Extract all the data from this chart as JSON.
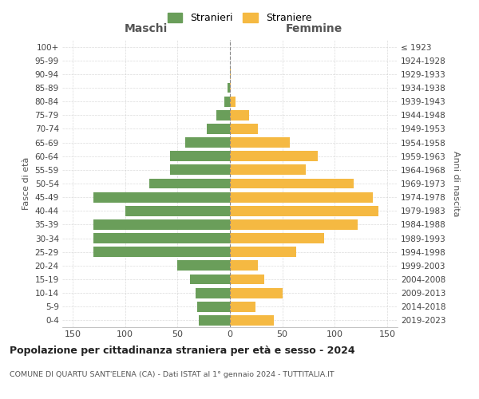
{
  "age_groups": [
    "0-4",
    "5-9",
    "10-14",
    "15-19",
    "20-24",
    "25-29",
    "30-34",
    "35-39",
    "40-44",
    "45-49",
    "50-54",
    "55-59",
    "60-64",
    "65-69",
    "70-74",
    "75-79",
    "80-84",
    "85-89",
    "90-94",
    "95-99",
    "100+"
  ],
  "birth_years": [
    "2019-2023",
    "2014-2018",
    "2009-2013",
    "2004-2008",
    "1999-2003",
    "1994-1998",
    "1989-1993",
    "1984-1988",
    "1979-1983",
    "1974-1978",
    "1969-1973",
    "1964-1968",
    "1959-1963",
    "1954-1958",
    "1949-1953",
    "1944-1948",
    "1939-1943",
    "1934-1938",
    "1929-1933",
    "1924-1928",
    "≤ 1923"
  ],
  "males": [
    30,
    31,
    33,
    38,
    50,
    130,
    130,
    130,
    100,
    130,
    77,
    57,
    57,
    43,
    22,
    13,
    5,
    2,
    0,
    0,
    0
  ],
  "females": [
    42,
    24,
    50,
    33,
    27,
    63,
    90,
    122,
    142,
    136,
    118,
    72,
    84,
    57,
    27,
    18,
    5,
    1,
    1,
    0,
    0
  ],
  "male_color": "#6a9e5a",
  "female_color": "#f5b942",
  "background_color": "#ffffff",
  "grid_color": "#cccccc",
  "title": "Popolazione per cittadinanza straniera per età e sesso - 2024",
  "subtitle": "COMUNE DI QUARTU SANT'ELENA (CA) - Dati ISTAT al 1° gennaio 2024 - TUTTITALIA.IT",
  "xlabel_left": "Maschi",
  "xlabel_right": "Femmine",
  "ylabel_left": "Fasce di età",
  "ylabel_right": "Anni di nascita",
  "legend_male": "Stranieri",
  "legend_female": "Straniere",
  "xlim": 160,
  "bar_height": 0.75
}
